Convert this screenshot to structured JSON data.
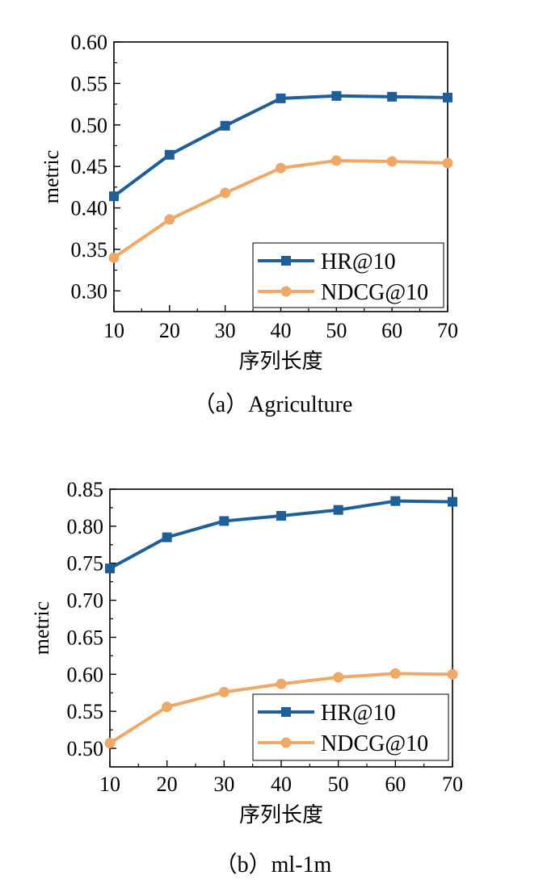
{
  "chart_data": [
    {
      "type": "line",
      "caption": "（a）Agriculture",
      "xlabel": "序列长度",
      "ylabel": "metric",
      "x": [
        10,
        20,
        30,
        40,
        50,
        60,
        70
      ],
      "xlim": [
        10,
        70
      ],
      "ylim": [
        0.275,
        0.6
      ],
      "yticks": [
        "0.30",
        "0.35",
        "0.40",
        "0.45",
        "0.50",
        "0.55",
        "0.60"
      ],
      "xticks": [
        "10",
        "20",
        "30",
        "40",
        "50",
        "60",
        "70"
      ],
      "legend_position": "bottom-right",
      "series": [
        {
          "name": "HR@10",
          "color": "#1f5f99",
          "marker": "square",
          "values": [
            0.414,
            0.464,
            0.499,
            0.532,
            0.535,
            0.534,
            0.533
          ]
        },
        {
          "name": "NDCG@10",
          "color": "#f0a868",
          "marker": "circle",
          "values": [
            0.34,
            0.386,
            0.418,
            0.448,
            0.457,
            0.456,
            0.454
          ]
        }
      ]
    },
    {
      "type": "line",
      "caption": "（b）ml-1m",
      "xlabel": "序列长度",
      "ylabel": "metric",
      "x": [
        10,
        20,
        30,
        40,
        50,
        60,
        70
      ],
      "xlim": [
        10,
        70
      ],
      "ylim": [
        0.475,
        0.85
      ],
      "yticks": [
        "0.50",
        "0.55",
        "0.60",
        "0.65",
        "0.70",
        "0.75",
        "0.80",
        "0.85"
      ],
      "xticks": [
        "10",
        "20",
        "30",
        "40",
        "50",
        "60",
        "70"
      ],
      "legend_position": "bottom-right",
      "series": [
        {
          "name": "HR@10",
          "color": "#1f5f99",
          "marker": "square",
          "values": [
            0.743,
            0.785,
            0.807,
            0.814,
            0.822,
            0.834,
            0.833
          ]
        },
        {
          "name": "NDCG@10",
          "color": "#f0a868",
          "marker": "circle",
          "values": [
            0.507,
            0.556,
            0.576,
            0.587,
            0.596,
            0.601,
            0.6
          ]
        }
      ]
    }
  ]
}
